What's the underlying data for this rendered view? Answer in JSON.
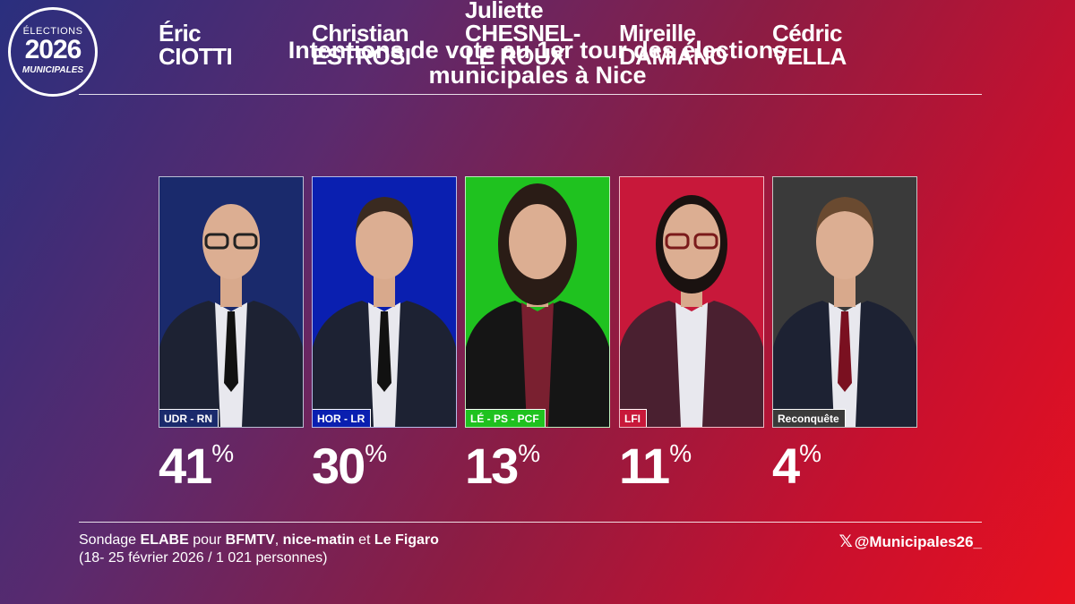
{
  "logo": {
    "line1": "ÉLECTIONS",
    "line2": "2026",
    "line3": "MUNICIPALES"
  },
  "header": {
    "title_line1": "Intentions de vote au 1er tour des élections",
    "title_line2": "municipales à Nice"
  },
  "chart_data": {
    "type": "table",
    "title": "Intentions de vote au 1er tour des élections municipales à Nice",
    "unit": "%",
    "candidates": [
      {
        "first_name": "Éric",
        "last_name": "CIOTTI",
        "party": "UDR - RN",
        "value": 41,
        "value_label": "41",
        "color": "#1a2a6c"
      },
      {
        "first_name": "Christian",
        "last_name": "ESTROSI",
        "party": "HOR - LR",
        "value": 30,
        "value_label": "30",
        "color": "#0a1fb0"
      },
      {
        "first_name": "Juliette",
        "last_name": "CHESNEL-",
        "last_name2": "LE ROUX",
        "party": "LÉ - PS - PCF",
        "value": 13,
        "value_label": "13",
        "color": "#1fc21f"
      },
      {
        "first_name": "Mireille",
        "last_name": "DAMIANO",
        "party": "LFI",
        "value": 11,
        "value_label": "11",
        "color": "#c8183a"
      },
      {
        "first_name": "Cédric",
        "last_name": "VELLA",
        "party": "Reconquête",
        "value": 4,
        "value_label": "4",
        "color": "#3a3a3a"
      }
    ]
  },
  "footer": {
    "source_prefix": "Sondage ",
    "pollster": "ELABE",
    "for": " pour ",
    "media1": "BFMTV",
    "sep1": ", ",
    "media2": "nice-matin",
    "and": " et ",
    "media3": "Le Figaro",
    "details": "(18- 25 février 2026 / 1 021 personnes)",
    "x_icon": "x-logo-icon",
    "handle": "@Municipales26_"
  }
}
